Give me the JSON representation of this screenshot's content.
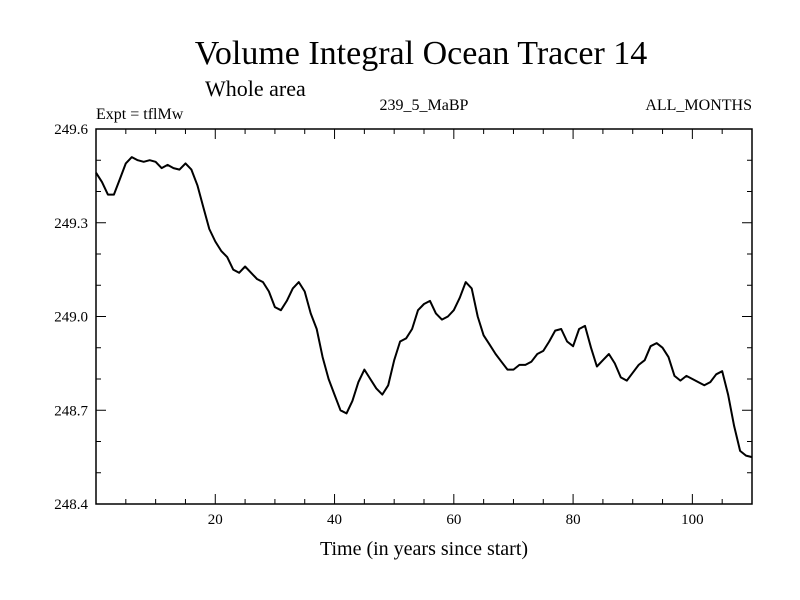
{
  "chart_data": {
    "type": "line",
    "title": "Volume Integral Ocean Tracer 14",
    "subtitle": "Whole area",
    "left_label": "Expt = tflMw",
    "center_label": "239_5_MaBP",
    "right_label": "ALL_MONTHS",
    "xlabel": "Time (in years since start)",
    "ylabel": "",
    "xlim": [
      0,
      110
    ],
    "ylim": [
      248.4,
      249.6
    ],
    "xticks": [
      20,
      40,
      60,
      80,
      100
    ],
    "xtick_labels": [
      "20",
      "40",
      "60",
      "80",
      "100"
    ],
    "yticks": [
      248.4,
      248.7,
      249.0,
      249.3,
      249.6
    ],
    "ytick_labels": [
      "248.4",
      "248.7",
      "249.0",
      "249.3",
      "249.6"
    ],
    "grid": false,
    "series": [
      {
        "name": "Tracer 14",
        "color": "#000000",
        "x": [
          0,
          1,
          2,
          3,
          4,
          5,
          6,
          7,
          8,
          9,
          10,
          11,
          12,
          13,
          14,
          15,
          16,
          17,
          18,
          19,
          20,
          21,
          22,
          23,
          24,
          25,
          26,
          27,
          28,
          29,
          30,
          31,
          32,
          33,
          34,
          35,
          36,
          37,
          38,
          39,
          40,
          41,
          42,
          43,
          44,
          45,
          46,
          47,
          48,
          49,
          50,
          51,
          52,
          53,
          54,
          55,
          56,
          57,
          58,
          59,
          60,
          61,
          62,
          63,
          64,
          65,
          66,
          67,
          68,
          69,
          70,
          71,
          72,
          73,
          74,
          75,
          76,
          77,
          78,
          79,
          80,
          81,
          82,
          83,
          84,
          85,
          86,
          87,
          88,
          89,
          90,
          91,
          92,
          93,
          94,
          95,
          96,
          97,
          98,
          99,
          100,
          101,
          102,
          103,
          104,
          105,
          106,
          107,
          108,
          109,
          110
        ],
        "y": [
          249.46,
          249.43,
          249.39,
          249.39,
          249.44,
          249.49,
          249.51,
          249.5,
          249.495,
          249.5,
          249.495,
          249.475,
          249.485,
          249.475,
          249.47,
          249.49,
          249.47,
          249.42,
          249.35,
          249.28,
          249.24,
          249.21,
          249.19,
          249.15,
          249.14,
          249.16,
          249.14,
          249.12,
          249.11,
          249.08,
          249.03,
          249.02,
          249.05,
          249.09,
          249.11,
          249.08,
          249.01,
          248.96,
          248.87,
          248.8,
          248.75,
          248.7,
          248.69,
          248.73,
          248.79,
          248.83,
          248.8,
          248.77,
          248.75,
          248.78,
          248.86,
          248.92,
          248.93,
          248.96,
          249.02,
          249.04,
          249.05,
          249.01,
          248.99,
          249.0,
          249.02,
          249.06,
          249.11,
          249.09,
          249.0,
          248.94,
          248.91,
          248.88,
          248.855,
          248.83,
          248.83,
          248.845,
          248.845,
          248.855,
          248.88,
          248.89,
          248.92,
          248.955,
          248.96,
          248.92,
          248.905,
          248.96,
          248.97,
          248.9,
          248.84,
          248.86,
          248.88,
          248.85,
          248.805,
          248.795,
          248.82,
          248.845,
          248.86,
          248.905,
          248.915,
          248.9,
          248.87,
          248.81,
          248.795,
          248.81,
          248.8,
          248.79,
          248.78,
          248.79,
          248.815,
          248.825,
          248.75,
          248.65,
          248.57,
          248.555,
          248.55
        ]
      }
    ]
  }
}
